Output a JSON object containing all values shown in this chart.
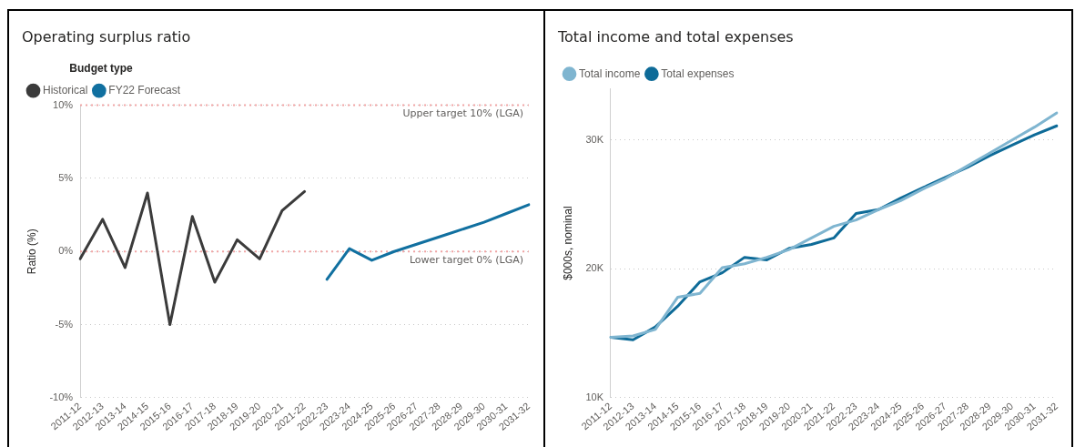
{
  "chart_data": [
    {
      "type": "line",
      "title": "Operating surplus ratio",
      "ylabel": "Ratio (%)",
      "legend_title": "Budget type",
      "legend": "top left",
      "grid": "y",
      "marker": "none",
      "line_style": "solid",
      "categories": [
        "2011-12",
        "2012-13",
        "2013-14",
        "2014-15",
        "2015-16",
        "2016-17",
        "2017-18",
        "2018-19",
        "2019-20",
        "2020-21",
        "2021-22",
        "2022-23",
        "2023-24",
        "2024-25",
        "2025-26",
        "2026-27",
        "2027-28",
        "2028-29",
        "2029-30",
        "2030-31",
        "2031-32"
      ],
      "series": [
        {
          "name": "Historical",
          "color": "#3b3b3b",
          "values": [
            -0.5,
            2.2,
            -1.1,
            4.0,
            -5.0,
            2.4,
            -2.1,
            0.8,
            -0.5,
            2.8,
            4.1,
            null,
            null,
            null,
            null,
            null,
            null,
            null,
            null,
            null,
            null
          ]
        },
        {
          "name": "FY22 Forecast",
          "color": "#1170a0",
          "values": [
            null,
            null,
            null,
            null,
            null,
            null,
            null,
            null,
            null,
            null,
            null,
            -1.9,
            0.2,
            -0.6,
            0.0,
            0.5,
            1.0,
            1.5,
            2.0,
            2.6,
            3.2
          ]
        }
      ],
      "ylim": [
        -10,
        10
      ],
      "yticks": [
        {
          "value": -10,
          "label": "-10%"
        },
        {
          "value": -5,
          "label": "-5%"
        },
        {
          "value": 0,
          "label": "0%"
        },
        {
          "value": 5,
          "label": "5%"
        },
        {
          "value": 10,
          "label": "10%"
        }
      ],
      "ref_lines": [
        {
          "axis": "y",
          "value": 10,
          "label": "Upper target 10% (LGA)",
          "color": "#f0a3a3",
          "line_style": "dotted"
        },
        {
          "axis": "y",
          "value": 0,
          "label": "Lower target 0% (LGA)",
          "color": "#f0a3a3",
          "line_style": "dotted"
        }
      ]
    },
    {
      "type": "line",
      "title": "Total income and total expenses",
      "ylabel": "$000s, nominal",
      "legend": "top left",
      "grid": "y",
      "marker": "none",
      "line_style": "solid",
      "categories": [
        "2011-12",
        "2012-13",
        "2013-14",
        "2014-15",
        "2015-16",
        "2016-17",
        "2017-18",
        "2018-19",
        "2019-20",
        "2020-21",
        "2021-22",
        "2022-23",
        "2023-24",
        "2024-25",
        "2025-26",
        "2026-27",
        "2027-28",
        "2028-29",
        "2029-30",
        "2030-31",
        "2031-32"
      ],
      "series": [
        {
          "name": "Total income",
          "color": "#7fb5d0",
          "values": [
            14700,
            14800,
            15300,
            17800,
            18100,
            20100,
            20400,
            20900,
            21500,
            22400,
            23300,
            23800,
            24600,
            25300,
            26200,
            27000,
            28000,
            29000,
            30000,
            31000,
            32100
          ]
        },
        {
          "name": "Total expenses",
          "color": "#0e6b98",
          "values": [
            14700,
            14500,
            15500,
            17100,
            19000,
            19700,
            20900,
            20700,
            21600,
            21900,
            22400,
            24300,
            24600,
            25500,
            26300,
            27100,
            27900,
            28800,
            29600,
            30400,
            31100
          ]
        }
      ],
      "ylim": [
        10000,
        34000
      ],
      "yticks": [
        {
          "value": 10000,
          "label": "10K"
        },
        {
          "value": 20000,
          "label": "20K"
        },
        {
          "value": 30000,
          "label": "30K"
        }
      ]
    }
  ]
}
